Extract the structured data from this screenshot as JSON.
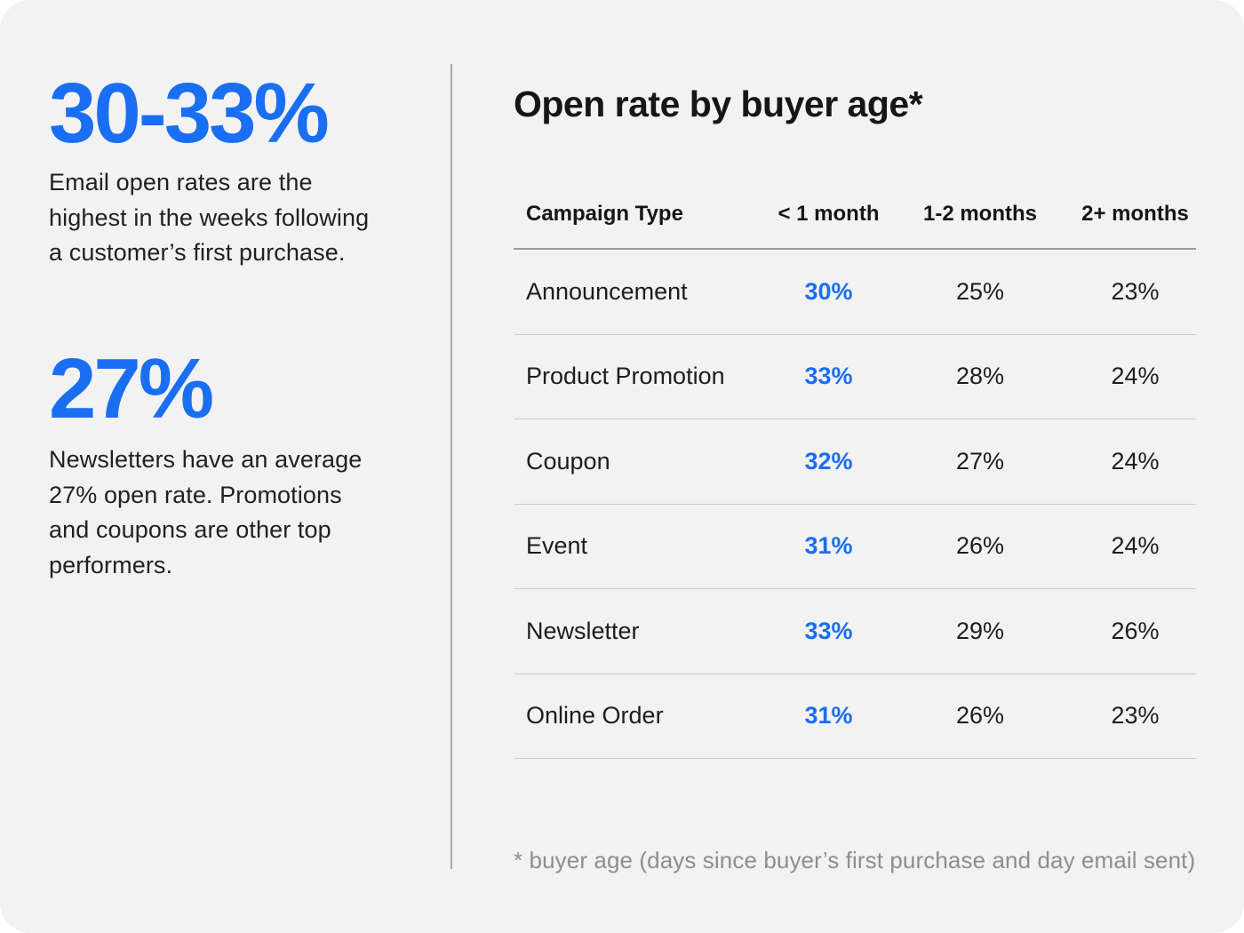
{
  "colors": {
    "accent": "#1a6ef2",
    "card_background": "#f2f2f2",
    "page_background": "#ffffff",
    "text_dark": "#161616",
    "text_muted": "#8e8e8e",
    "row_separator": "#cbcbcb",
    "header_underline": "#9b9b9b"
  },
  "left_panel": {
    "stats": [
      {
        "value": "30-33%",
        "lines": [
          "Email open rates are the",
          "highest in the weeks following",
          "a customer’s first purchase."
        ]
      },
      {
        "value": "27%",
        "lines": [
          "Newsletters have an average",
          "27% open rate. Promotions",
          "and coupons are other top",
          "performers."
        ]
      }
    ]
  },
  "table_section": {
    "title": "Open rate by buyer age*",
    "columns": [
      "Campaign Type",
      "< 1 month",
      "1-2 months",
      "2+ months"
    ],
    "rows": [
      {
        "campaign": "Announcement",
        "values": [
          "30%",
          "25%",
          "23%"
        ]
      },
      {
        "campaign": "Product Promotion",
        "values": [
          "33%",
          "28%",
          "24%"
        ]
      },
      {
        "campaign": "Coupon",
        "values": [
          "32%",
          "27%",
          "24%"
        ]
      },
      {
        "campaign": "Event",
        "values": [
          "31%",
          "26%",
          "24%"
        ]
      },
      {
        "campaign": "Newsletter",
        "values": [
          "33%",
          "29%",
          "26%"
        ]
      },
      {
        "campaign": "Online Order",
        "values": [
          "31%",
          "26%",
          "23%"
        ]
      }
    ],
    "footnote": "* buyer age (days since buyer’s first purchase and day email sent)"
  },
  "chart_data": {
    "type": "table",
    "title": "Open rate by buyer age*",
    "columns": [
      "Campaign Type",
      "< 1 month",
      "1-2 months",
      "2+ months"
    ],
    "units": "%",
    "rows": [
      [
        "Announcement",
        30,
        25,
        23
      ],
      [
        "Product Promotion",
        33,
        28,
        24
      ],
      [
        "Coupon",
        32,
        27,
        24
      ],
      [
        "Event",
        31,
        26,
        24
      ],
      [
        "Newsletter",
        33,
        29,
        26
      ],
      [
        "Online Order",
        31,
        26,
        23
      ]
    ],
    "highlight_column": "< 1 month",
    "footnote": "* buyer age (days since buyer’s first purchase and day email sent)",
    "callouts": [
      {
        "value": "30-33%",
        "text": "Email open rates are the highest in the weeks following a customer’s first purchase."
      },
      {
        "value": "27%",
        "text": "Newsletters have an average 27% open rate. Promotions and coupons are other top performers."
      }
    ]
  }
}
